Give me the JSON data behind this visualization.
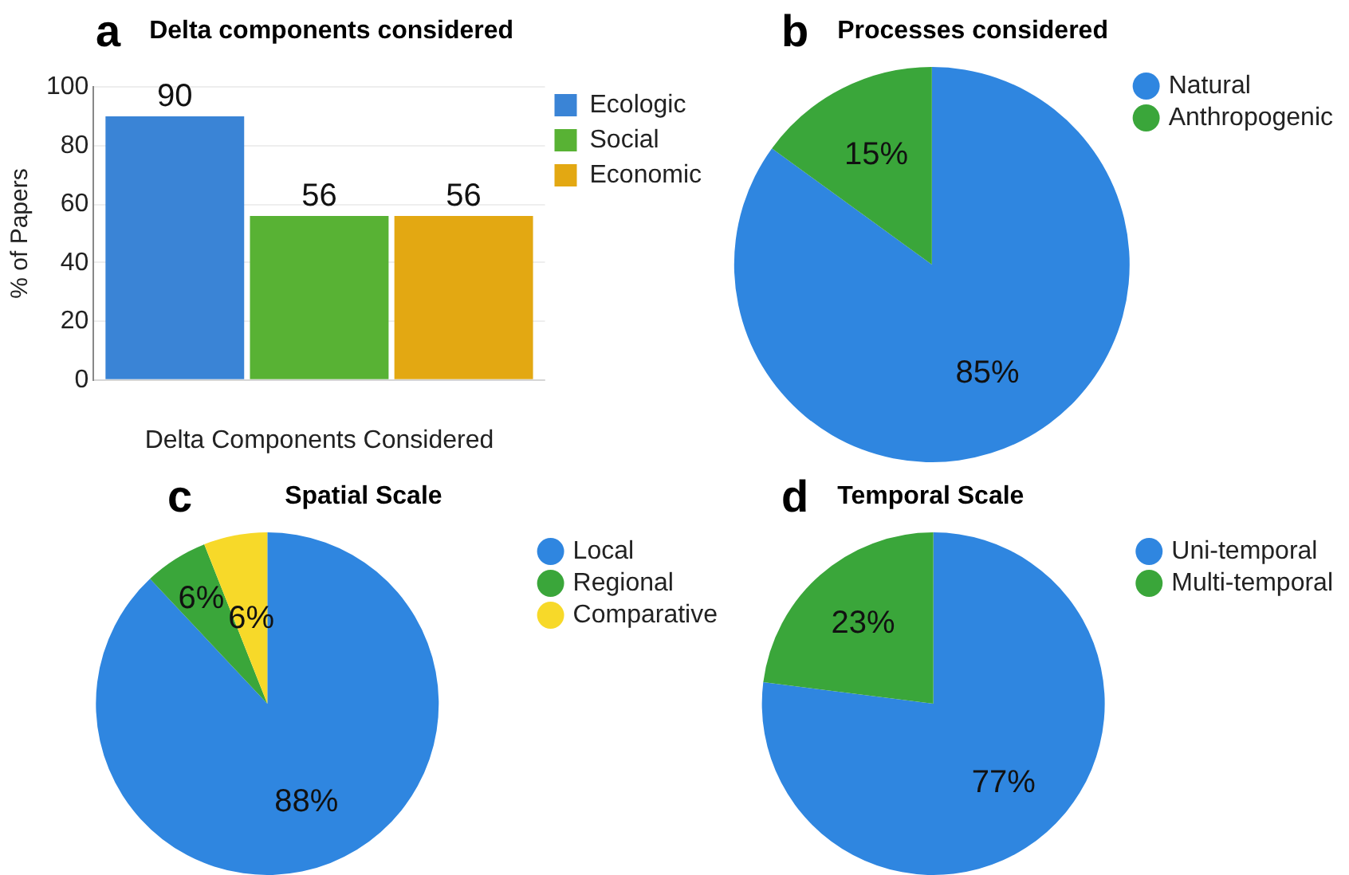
{
  "chart_data": [
    {
      "type": "bar",
      "title": "Delta components considered",
      "annotations": [
        "a"
      ],
      "xlabel": "Delta Components Considered",
      "ylabel": "% of Papers",
      "categories": [
        null
      ],
      "series": [
        {
          "name": "Ecologic",
          "color": "#3a84d6",
          "values": [
            90
          ]
        },
        {
          "name": "Social",
          "color": "#58b234",
          "values": [
            56
          ]
        },
        {
          "name": "Economic",
          "color": "#e3a812",
          "values": [
            56
          ]
        }
      ],
      "ylim": [
        0,
        100
      ],
      "yticks": [
        0,
        20,
        40,
        60,
        80,
        100
      ],
      "grid": "y",
      "legend": "right",
      "data_labels": true
    },
    {
      "type": "pie",
      "title": "Processes considered",
      "annotations": [
        "b"
      ],
      "categories": [
        "Natural",
        "Anthropogenic"
      ],
      "values": [
        85,
        15
      ],
      "colors": [
        "#2f86e0",
        "#3aa63a"
      ],
      "value_labels": [
        "85%",
        "15%"
      ],
      "legend": "right"
    },
    {
      "type": "pie",
      "title": "Spatial Scale",
      "annotations": [
        "c"
      ],
      "categories": [
        "Local",
        "Regional",
        "Comparative"
      ],
      "values": [
        88,
        6,
        6
      ],
      "colors": [
        "#2f86e0",
        "#3aa63a",
        "#f7d929"
      ],
      "value_labels": [
        "88%",
        "6%",
        "6%"
      ],
      "legend": "right"
    },
    {
      "type": "pie",
      "title": "Temporal Scale",
      "annotations": [
        "d"
      ],
      "categories": [
        "Uni-temporal",
        "Multi-temporal"
      ],
      "values": [
        77,
        23
      ],
      "colors": [
        "#2f86e0",
        "#3aa63a"
      ],
      "value_labels": [
        "77%",
        "23%"
      ],
      "legend": "right"
    }
  ]
}
